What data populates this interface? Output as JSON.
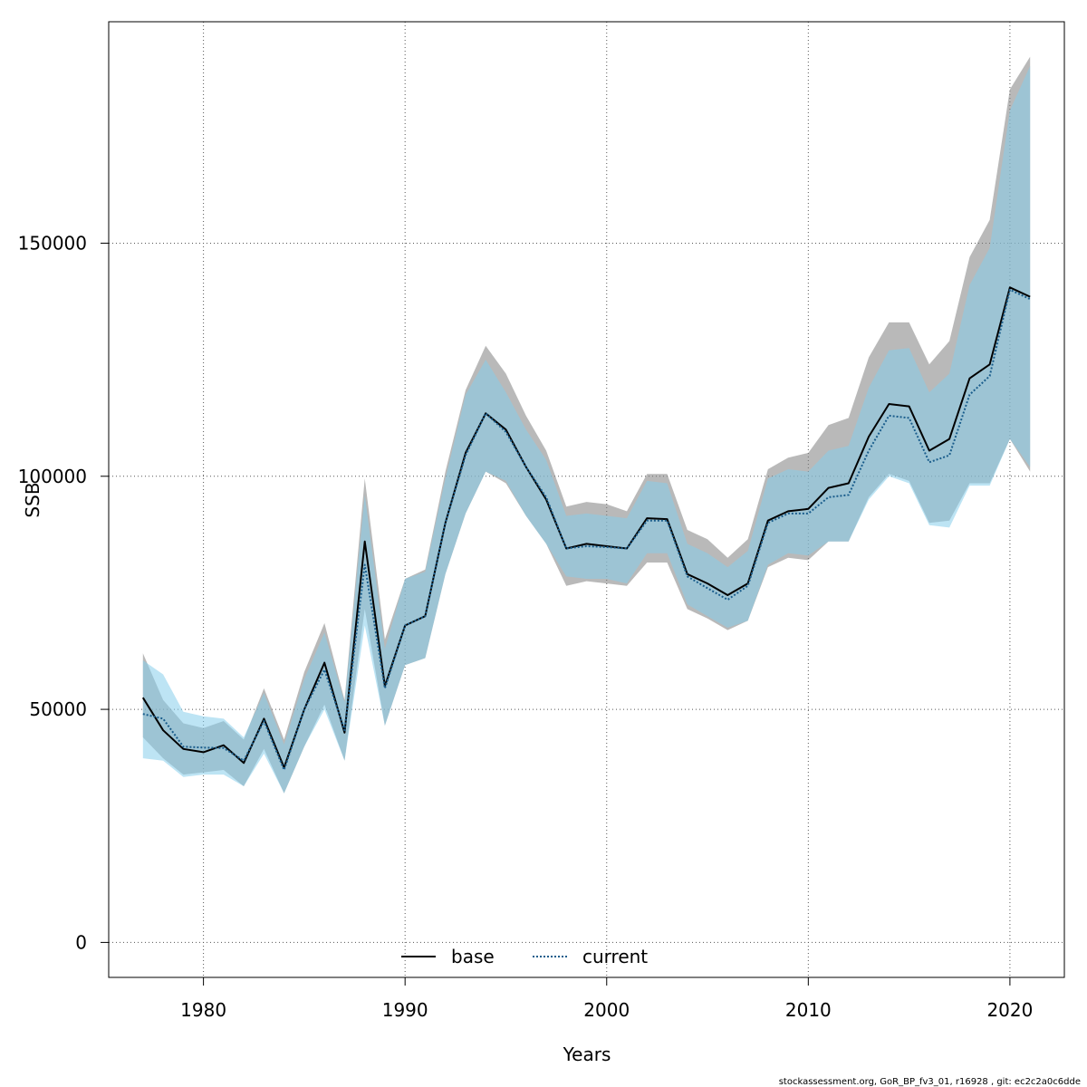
{
  "chart_data": {
    "type": "line",
    "title": "",
    "xlabel": "Years",
    "ylabel": "SSB",
    "xlim": [
      1975.3,
      2022.7
    ],
    "ylim": [
      -7500,
      197500
    ],
    "x_ticks": [
      1980,
      1990,
      2000,
      2010,
      2020
    ],
    "y_ticks": [
      0,
      50000,
      100000,
      150000
    ],
    "grid": "dotted",
    "legend_position": "bottom-center",
    "x": [
      1977,
      1978,
      1979,
      1980,
      1981,
      1982,
      1983,
      1984,
      1985,
      1986,
      1987,
      1988,
      1989,
      1990,
      1991,
      1992,
      1993,
      1994,
      1995,
      1996,
      1997,
      1998,
      1999,
      2000,
      2001,
      2002,
      2003,
      2004,
      2005,
      2006,
      2007,
      2008,
      2009,
      2010,
      2011,
      2012,
      2013,
      2014,
      2015,
      2016,
      2017,
      2018,
      2019,
      2020,
      2021
    ],
    "series": [
      {
        "name": "base",
        "color": "#000000",
        "line_style": "solid",
        "band_color": "#808080",
        "values": [
          52500,
          45500,
          41500,
          40800,
          42300,
          38500,
          48000,
          37500,
          50000,
          60000,
          45000,
          86000,
          55000,
          68000,
          70000,
          90000,
          105000,
          113500,
          110000,
          102000,
          95000,
          84500,
          85500,
          85000,
          84500,
          91000,
          90800,
          79000,
          77000,
          74500,
          77000,
          90500,
          92500,
          93000,
          97500,
          98500,
          108500,
          115500,
          115000,
          105500,
          108000,
          121000,
          124000,
          140500,
          138500
        ],
        "upper": [
          62000,
          52000,
          47000,
          46000,
          47500,
          43500,
          54500,
          43500,
          58000,
          68500,
          52000,
          99500,
          65000,
          78000,
          80000,
          101000,
          118500,
          128000,
          122000,
          113000,
          105500,
          93500,
          94500,
          94000,
          92500,
          100500,
          100500,
          88500,
          86500,
          82500,
          86500,
          101500,
          104000,
          105000,
          111000,
          112500,
          125500,
          133000,
          133000,
          124000,
          129000,
          147000,
          155000,
          183000,
          190000
        ],
        "lower": [
          44000,
          39500,
          36000,
          36500,
          37000,
          33500,
          41500,
          32000,
          42000,
          51000,
          39000,
          71500,
          46500,
          59500,
          61000,
          79000,
          92000,
          101000,
          98500,
          91500,
          85500,
          76500,
          77500,
          77000,
          76500,
          81500,
          81500,
          71500,
          69500,
          67000,
          69000,
          80500,
          82500,
          82000,
          86000,
          86000,
          95500,
          100500,
          99000,
          90000,
          90500,
          98500,
          98500,
          108000,
          101000
        ]
      },
      {
        "name": "current",
        "color": "#1a5d8c",
        "line_style": "dotted",
        "band_color": "#87ceeb",
        "values": [
          49000,
          48000,
          42000,
          41800,
          41700,
          39000,
          47500,
          37000,
          50000,
          58500,
          45500,
          81000,
          54500,
          68000,
          70000,
          90000,
          104500,
          113500,
          109500,
          102000,
          95500,
          84500,
          85000,
          84800,
          84500,
          90500,
          90500,
          78500,
          76000,
          73500,
          76500,
          90000,
          92000,
          92000,
          95500,
          96000,
          105500,
          113000,
          112500,
          103000,
          104500,
          117500,
          121500,
          140000,
          138000
        ],
        "upper": [
          60500,
          57500,
          49500,
          48500,
          48000,
          44000,
          53500,
          42500,
          56500,
          66500,
          51500,
          96000,
          63000,
          78000,
          79500,
          99500,
          117500,
          125000,
          118000,
          110000,
          103500,
          91500,
          92000,
          91500,
          91000,
          99000,
          98500,
          85500,
          83500,
          80500,
          84000,
          99500,
          101500,
          101000,
          105500,
          106500,
          119000,
          127000,
          127500,
          118000,
          122000,
          141000,
          149000,
          178500,
          188000
        ],
        "lower": [
          39500,
          39000,
          35500,
          36000,
          36000,
          33500,
          40500,
          32000,
          42000,
          50000,
          39000,
          68000,
          46500,
          59500,
          61000,
          79000,
          92000,
          101000,
          99000,
          91500,
          85500,
          78500,
          78000,
          78000,
          77000,
          83500,
          83500,
          72500,
          70000,
          67500,
          69000,
          81000,
          83500,
          83000,
          86000,
          86000,
          95000,
          100000,
          98500,
          89500,
          89000,
          98000,
          98000,
          108000,
          102000
        ]
      }
    ]
  },
  "footer": "stockassessment.org, GoR_BP_fv3_01, r16928 , git: ec2c2a0c6dde"
}
